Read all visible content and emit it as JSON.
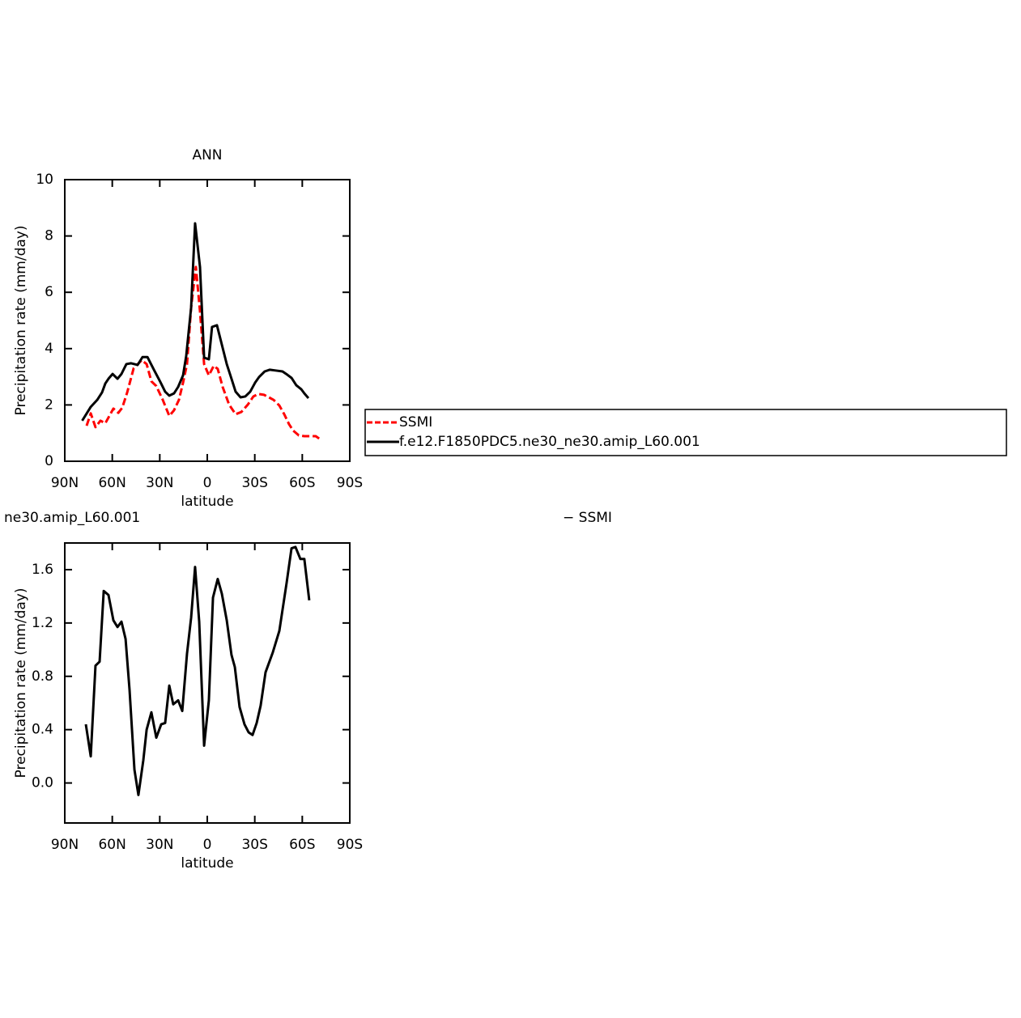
{
  "chart_data": [
    {
      "type": "line",
      "title": "ANN",
      "xlabel": "latitude",
      "ylabel": "Precipitation rate (mm/day)",
      "xlim": [
        90,
        -90
      ],
      "ylim": [
        0,
        10
      ],
      "xticks": [
        {
          "value": 90,
          "label": "90N"
        },
        {
          "value": 60,
          "label": "60N"
        },
        {
          "value": 30,
          "label": "30N"
        },
        0,
        {
          "value": -30,
          "label": "30S"
        },
        {
          "value": -60,
          "label": "60S"
        },
        {
          "value": -90,
          "label": "90S"
        }
      ],
      "yticks": [
        0,
        2,
        4,
        6,
        8,
        10
      ],
      "legend": "right",
      "series": [
        {
          "name": "SSMI",
          "color": "#ff0000",
          "style": "dashed",
          "x": [
            76.2,
            73.6,
            70.6,
            67.5,
            64.4,
            59.3,
            56.2,
            53.7,
            50.6,
            46.5,
            41.4,
            38.3,
            35.3,
            32.2,
            28.1,
            24,
            21,
            17.9,
            15.3,
            12.8,
            10.2,
            7.2,
            4.6,
            2,
            -1,
            -4.1,
            -6.6,
            -9.7,
            -13.8,
            -17.9,
            -21.5,
            -25.6,
            -29.1,
            -32.2,
            -35.8,
            -38.9,
            -41.9,
            -45.5,
            -48.6,
            -51.6,
            -54.2,
            -57.8,
            -61.3,
            -64.4,
            -68.5,
            -72.1
          ],
          "values": [
            1.26,
            1.7,
            1.21,
            1.44,
            1.35,
            1.87,
            1.72,
            1.9,
            2.44,
            3.3,
            3.59,
            3.45,
            2.84,
            2.67,
            2.18,
            1.61,
            1.81,
            2.18,
            2.79,
            3.45,
            5.46,
            6.9,
            5.32,
            3.45,
            3.05,
            3.39,
            3.28,
            2.64,
            2.01,
            1.67,
            1.75,
            2.01,
            2.3,
            2.39,
            2.36,
            2.27,
            2.18,
            1.98,
            1.67,
            1.32,
            1.09,
            0.92,
            0.89,
            0.89,
            0.89,
            0.75
          ]
        },
        {
          "name": "f.e12.F1850PDC5.ne30_ne30.amip_L60.001",
          "color": "#000000",
          "style": "solid",
          "x": [
            79,
            73.6,
            69.5,
            66.5,
            64.4,
            62.4,
            59.8,
            56.7,
            54.2,
            51.1,
            48.1,
            44,
            40.9,
            37.8,
            33.7,
            29.7,
            26.6,
            24,
            21,
            18.4,
            15.3,
            13.3,
            10.2,
            7.7,
            4.6,
            2,
            -1,
            -3,
            -6.1,
            -9.2,
            -12.3,
            -15.3,
            -17.9,
            -21,
            -24,
            -27.1,
            -30.2,
            -32.7,
            -36.3,
            -39.4,
            -43.5,
            -47.5,
            -50.6,
            -53.2,
            -56.2,
            -59.3,
            -61.3,
            -63.9
          ],
          "values": [
            1.44,
            1.93,
            2.18,
            2.44,
            2.76,
            2.93,
            3.1,
            2.93,
            3.1,
            3.45,
            3.48,
            3.42,
            3.7,
            3.7,
            3.25,
            2.82,
            2.47,
            2.33,
            2.41,
            2.64,
            3.05,
            3.74,
            5.46,
            8.45,
            6.9,
            3.68,
            3.62,
            4.77,
            4.83,
            4.14,
            3.45,
            2.93,
            2.47,
            2.27,
            2.3,
            2.47,
            2.79,
            2.99,
            3.19,
            3.25,
            3.22,
            3.19,
            3.07,
            2.96,
            2.7,
            2.56,
            2.41,
            2.24
          ]
        }
      ]
    },
    {
      "type": "line",
      "title_left": "ne30.amip_L60.001",
      "title_right": "− SSMI",
      "xlabel": "latitude",
      "ylabel": "Precipitation rate (mm/day)",
      "xlim": [
        90,
        -90
      ],
      "ylim": [
        -0.3,
        1.8
      ],
      "xticks": [
        {
          "value": 90,
          "label": "90N"
        },
        {
          "value": 60,
          "label": "60N"
        },
        {
          "value": 30,
          "label": "30N"
        },
        0,
        {
          "value": -30,
          "label": "30S"
        },
        {
          "value": -60,
          "label": "60S"
        },
        {
          "value": -90,
          "label": "90S"
        }
      ],
      "yticks": [
        {
          "value": 0,
          "label": "0.0"
        },
        0.4,
        0.8,
        1.2,
        1.6
      ],
      "series": [
        {
          "color": "#000000",
          "style": "solid",
          "x": [
            76.7,
            73.6,
            70.6,
            68,
            65.4,
            62.4,
            59.3,
            56.7,
            54.2,
            51.6,
            49.1,
            46,
            43.5,
            40.4,
            38.3,
            35.3,
            32.2,
            29.1,
            26.6,
            24,
            21.5,
            18.4,
            15.8,
            12.8,
            10.2,
            7.7,
            5.1,
            2,
            -1,
            -3.6,
            -6.6,
            -9.2,
            -12.3,
            -15.3,
            -17.4,
            -20.4,
            -23.5,
            -26.1,
            -28.6,
            -31.2,
            -33.7,
            -36.8,
            -41.4,
            -45.5,
            -50.1,
            -53.2,
            -55.7,
            -58.8,
            -61.3,
            -64.4
          ],
          "values": [
            0.44,
            0.2,
            0.88,
            0.91,
            1.44,
            1.41,
            1.22,
            1.17,
            1.21,
            1.08,
            0.7,
            0.1,
            -0.09,
            0.17,
            0.4,
            0.53,
            0.34,
            0.44,
            0.45,
            0.73,
            0.59,
            0.62,
            0.54,
            0.97,
            1.24,
            1.62,
            1.21,
            0.28,
            0.62,
            1.39,
            1.53,
            1.42,
            1.22,
            0.96,
            0.87,
            0.57,
            0.44,
            0.38,
            0.36,
            0.45,
            0.58,
            0.83,
            0.98,
            1.14,
            1.5,
            1.76,
            1.77,
            1.68,
            1.68,
            1.37
          ]
        }
      ]
    }
  ]
}
